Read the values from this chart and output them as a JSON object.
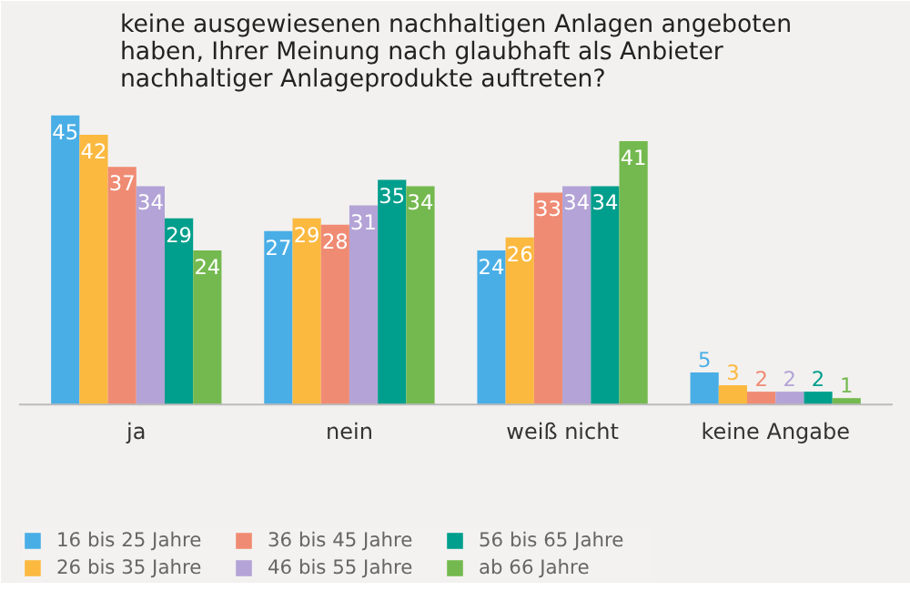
{
  "chart_data": {
    "type": "bar",
    "title": "keine ausgewiesenen nachhaltigen Anlagen angeboten\nhaben, Ihrer Meinung nach glaubhaft als Anbieter\nnachhaltiger Anlageprodukte auftreten?",
    "categories": [
      "ja",
      "nein",
      "weiß nicht",
      "keine Angabe"
    ],
    "series": [
      {
        "name": "16 bis 25 Jahre",
        "color": "#4aaee6",
        "values": [
          45,
          27,
          24,
          5
        ]
      },
      {
        "name": "26 bis 35 Jahre",
        "color": "#fbb940",
        "values": [
          42,
          29,
          26,
          3
        ]
      },
      {
        "name": "36 bis 45 Jahre",
        "color": "#f08b73",
        "values": [
          37,
          28,
          33,
          2
        ]
      },
      {
        "name": "46 bis 55 Jahre",
        "color": "#b3a3d6",
        "values": [
          34,
          31,
          34,
          2
        ]
      },
      {
        "name": "56 bis 65 Jahre",
        "color": "#009e8c",
        "values": [
          29,
          35,
          34,
          2
        ]
      },
      {
        "name": "ab 66 Jahre",
        "color": "#74b94f",
        "values": [
          24,
          34,
          41,
          1
        ]
      }
    ],
    "data_labels": true,
    "legend": "bottom"
  }
}
